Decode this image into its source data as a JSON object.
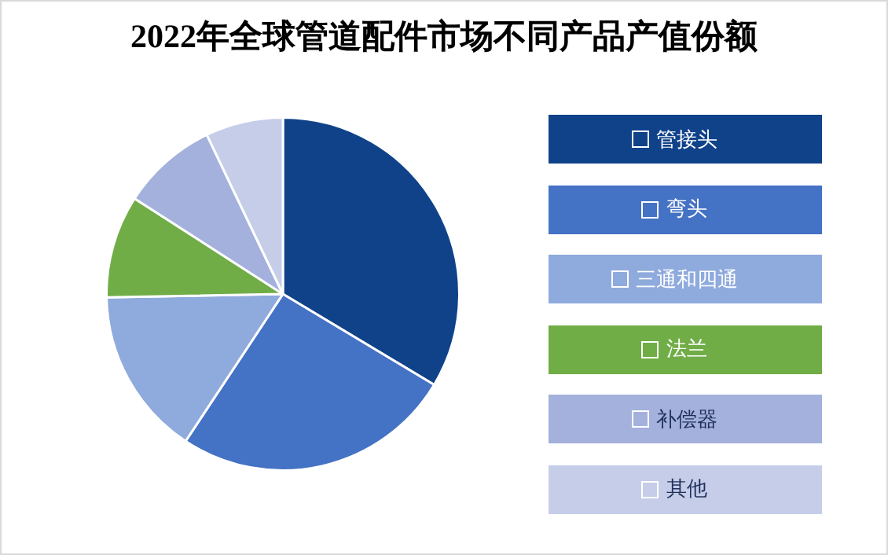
{
  "chart_data": {
    "type": "pie",
    "title": "2022年全球管道配件市场不同产品产值份额",
    "categories": [
      "管接头",
      "弯头",
      "三通和四通",
      "法兰",
      "补偿器",
      "其他"
    ],
    "values": [
      33.6,
      25.7,
      15.4,
      9.4,
      8.8,
      7.1
    ],
    "colors": [
      "#10428a",
      "#4472c4",
      "#8faadc",
      "#70ad47",
      "#a3b1dc",
      "#c5cde9"
    ],
    "legend": "right"
  }
}
